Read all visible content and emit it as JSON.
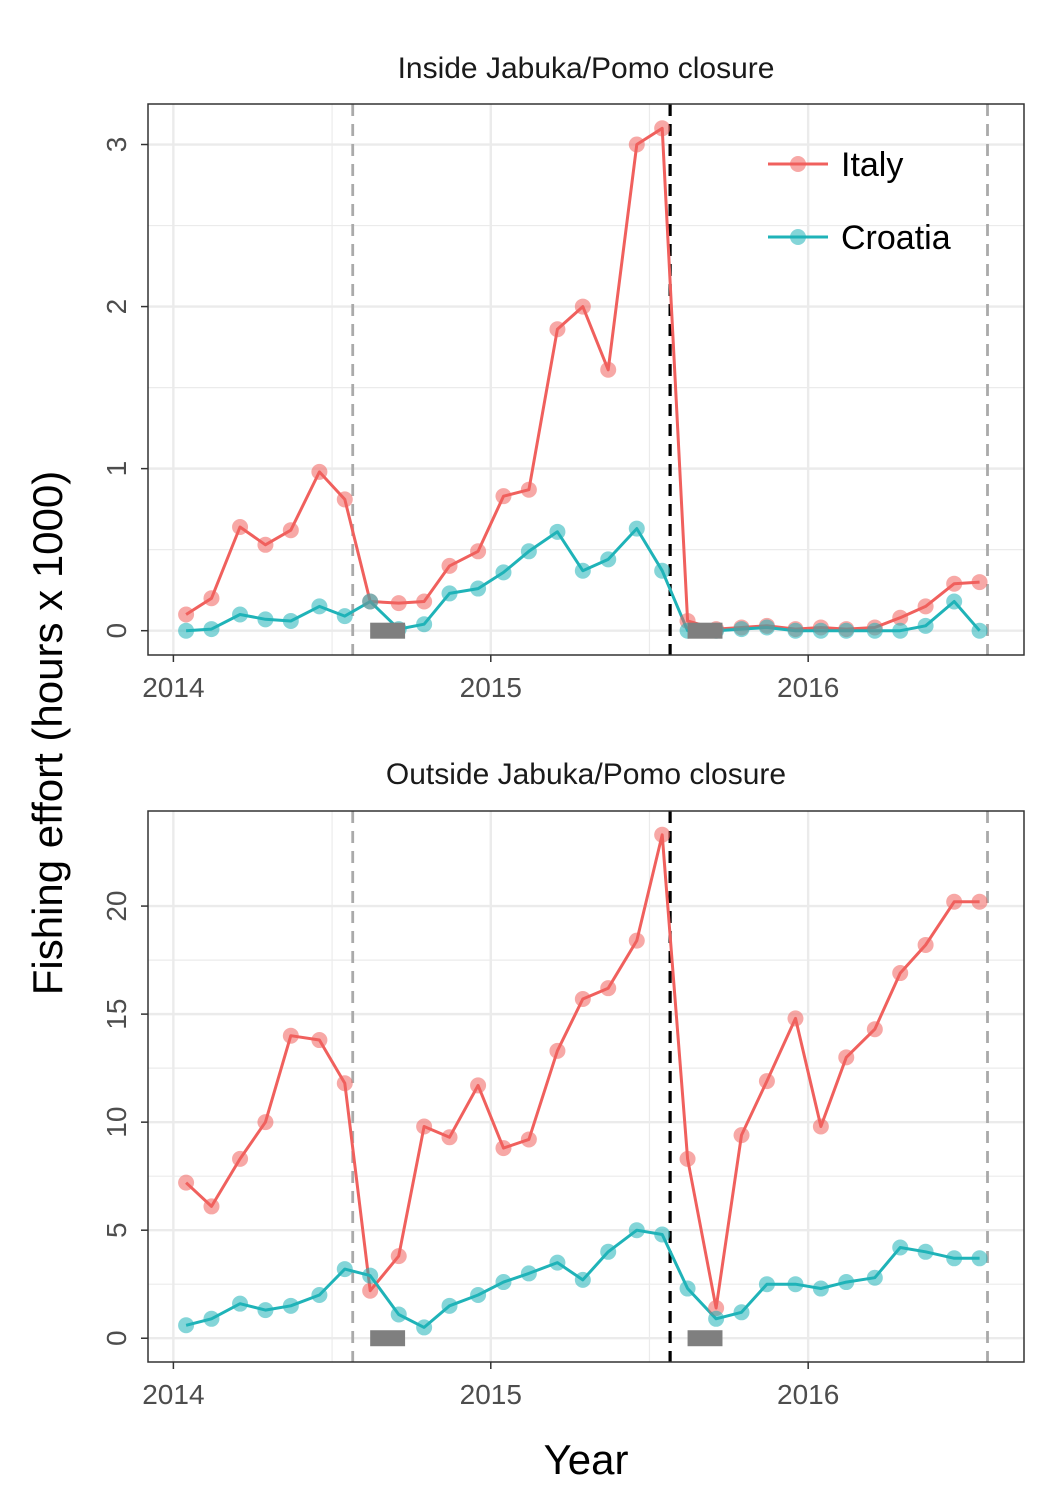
{
  "figure": {
    "xlabel": "Year",
    "ylabel": "Fishing effort (hours x 1000)"
  },
  "colors": {
    "italy": "#F0605D",
    "croatia": "#1FB3B8",
    "grid": "#EBEBEB",
    "closure_line": "#000000",
    "period_line": "#AAAAAA",
    "bar": "#7F7F7F"
  },
  "legend": {
    "placement": "top-right",
    "items": [
      {
        "label": "Italy",
        "color": "#F0605D"
      },
      {
        "label": "Croatia",
        "color": "#1FB3B8"
      }
    ]
  },
  "chart_data": [
    {
      "type": "line",
      "title": "Inside Jabuka/Pomo closure",
      "x_ticks": [
        2014,
        2015,
        2016
      ],
      "xlim": [
        2013.92,
        2016.68
      ],
      "y_ticks": [
        0,
        1,
        2,
        3
      ],
      "ylim": [
        -0.15,
        3.25
      ],
      "x": [
        2014.04,
        2014.12,
        2014.21,
        2014.29,
        2014.37,
        2014.46,
        2014.54,
        2014.62,
        2014.71,
        2014.79,
        2014.87,
        2014.96,
        2015.04,
        2015.12,
        2015.21,
        2015.29,
        2015.37,
        2015.46,
        2015.54,
        2015.62,
        2015.71,
        2015.79,
        2015.87,
        2015.96,
        2016.04,
        2016.12,
        2016.21,
        2016.29,
        2016.37,
        2016.46,
        2016.54
      ],
      "series": [
        {
          "name": "Italy",
          "values": [
            0.1,
            0.2,
            0.64,
            0.53,
            0.62,
            0.98,
            0.81,
            0.18,
            0.17,
            0.18,
            0.4,
            0.49,
            0.83,
            0.87,
            1.86,
            2.0,
            1.61,
            3.0,
            3.1,
            0.06,
            0.01,
            0.02,
            0.03,
            0.01,
            0.02,
            0.01,
            0.02,
            0.08,
            0.15,
            0.29,
            0.3
          ]
        },
        {
          "name": "Croatia",
          "values": [
            0.0,
            0.01,
            0.1,
            0.07,
            0.06,
            0.15,
            0.09,
            0.18,
            0.01,
            0.04,
            0.23,
            0.26,
            0.36,
            0.49,
            0.61,
            0.37,
            0.44,
            0.63,
            0.37,
            0.0,
            0.0,
            0.01,
            0.02,
            0.0,
            0.0,
            0.0,
            0.0,
            0.0,
            0.03,
            0.18,
            0.0
          ]
        }
      ],
      "reference_lines": [
        {
          "x": 2014.565,
          "style": "period"
        },
        {
          "x": 2015.565,
          "style": "closure"
        },
        {
          "x": 2016.565,
          "style": "period"
        }
      ],
      "bars": [
        {
          "x_start": 2014.62,
          "x_end": 2014.73,
          "y": 0
        },
        {
          "x_start": 2015.62,
          "x_end": 2015.73,
          "y": 0
        }
      ]
    },
    {
      "type": "line",
      "title": "Outside Jabuka/Pomo closure",
      "x_ticks": [
        2014,
        2015,
        2016
      ],
      "xlim": [
        2013.92,
        2016.68
      ],
      "y_ticks": [
        0,
        5,
        10,
        15,
        20
      ],
      "ylim": [
        -1.1,
        24.4
      ],
      "x": [
        2014.04,
        2014.12,
        2014.21,
        2014.29,
        2014.37,
        2014.46,
        2014.54,
        2014.62,
        2014.71,
        2014.79,
        2014.87,
        2014.96,
        2015.04,
        2015.12,
        2015.21,
        2015.29,
        2015.37,
        2015.46,
        2015.54,
        2015.62,
        2015.71,
        2015.79,
        2015.87,
        2015.96,
        2016.04,
        2016.12,
        2016.21,
        2016.29,
        2016.37,
        2016.46,
        2016.54
      ],
      "series": [
        {
          "name": "Italy",
          "values": [
            7.2,
            6.1,
            8.3,
            10.0,
            14.0,
            13.8,
            11.8,
            2.2,
            3.8,
            9.8,
            9.3,
            11.7,
            8.8,
            9.2,
            13.3,
            15.7,
            16.2,
            18.4,
            23.3,
            8.3,
            1.4,
            9.4,
            11.9,
            14.8,
            9.8,
            13.0,
            14.3,
            16.9,
            18.2,
            20.2,
            20.2
          ]
        },
        {
          "name": "Croatia",
          "values": [
            0.6,
            0.9,
            1.6,
            1.3,
            1.5,
            2.0,
            3.2,
            2.9,
            1.1,
            0.5,
            1.5,
            2.0,
            2.6,
            3.0,
            3.5,
            2.7,
            4.0,
            5.0,
            4.8,
            2.3,
            0.9,
            1.2,
            2.5,
            2.5,
            2.3,
            2.6,
            2.8,
            4.2,
            4.0,
            3.7,
            3.7
          ]
        }
      ],
      "reference_lines": [
        {
          "x": 2014.565,
          "style": "period"
        },
        {
          "x": 2015.565,
          "style": "closure"
        },
        {
          "x": 2016.565,
          "style": "period"
        }
      ],
      "bars": [
        {
          "x_start": 2014.62,
          "x_end": 2014.73,
          "y": 0
        },
        {
          "x_start": 2015.62,
          "x_end": 2015.73,
          "y": 0
        }
      ]
    }
  ]
}
